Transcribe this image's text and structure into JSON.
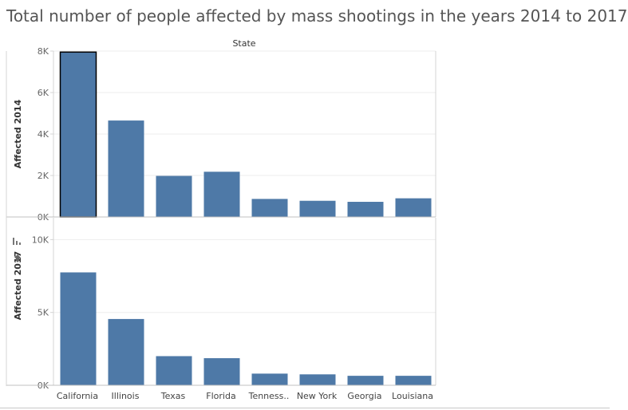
{
  "title": "Total number of people affected by mass shootings in the years 2014 to 2017",
  "colors": {
    "bar": "#4e79a7",
    "grid": "#eeeeee",
    "axis": "#d4d4d4",
    "text": "#555555"
  },
  "chart_data": {
    "type": "bar",
    "column_header": "State",
    "categories": [
      "California",
      "Illinois",
      "Texas",
      "Florida",
      "Tenness..",
      "New York",
      "Georgia",
      "Louisiana"
    ],
    "selected_category": "California",
    "series": [
      {
        "name": "Affected 2014",
        "values": [
          7950,
          4650,
          1980,
          2180,
          870,
          780,
          730,
          900
        ],
        "ylim": [
          0,
          8000
        ],
        "ticks": [
          0,
          2000,
          4000,
          6000,
          8000
        ],
        "tick_labels": [
          "0K",
          "2K",
          "4K",
          "6K",
          "8K"
        ]
      },
      {
        "name": "Affected 2017",
        "values": [
          7750,
          4550,
          2000,
          1860,
          800,
          750,
          650,
          650
        ],
        "ylim": [
          0,
          11500
        ],
        "ticks": [
          0,
          5000,
          10000
        ],
        "tick_labels": [
          "0K",
          "5K",
          "10K"
        ]
      }
    ],
    "grid": true,
    "legend": "none"
  }
}
